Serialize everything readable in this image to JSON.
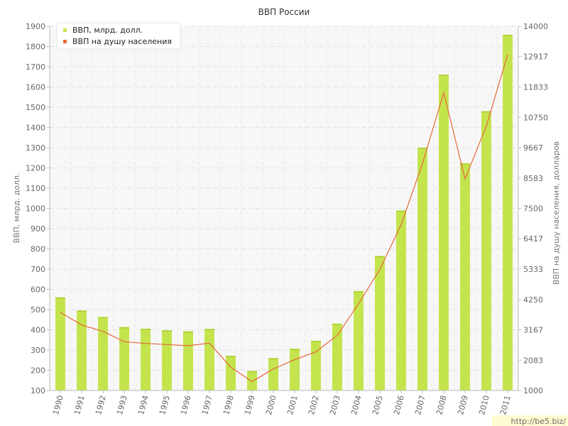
{
  "chart_data": {
    "type": "bar",
    "title": "ВВП России",
    "categories": [
      "1990",
      "1991",
      "1992",
      "1993",
      "1994",
      "1995",
      "1996",
      "1997",
      "1998",
      "1999",
      "2000",
      "2001",
      "2002",
      "2003",
      "2004",
      "2005",
      "2006",
      "2007",
      "2008",
      "2009",
      "2010",
      "2011"
    ],
    "series": [
      {
        "name": "ВВП, млрд. долл.",
        "type": "bar",
        "axis": "left",
        "color": "#c4e44e",
        "values": [
          560,
          495,
          463,
          413,
          405,
          397,
          392,
          404,
          271,
          196,
          260,
          306,
          345,
          430,
          591,
          764,
          989,
          1300,
          1661,
          1223,
          1480,
          1858
        ]
      },
      {
        "name": "ВВП на душу населения",
        "type": "line",
        "axis": "right",
        "color": "#e8673a",
        "values": [
          3790,
          3340,
          3110,
          2740,
          2680,
          2640,
          2600,
          2690,
          1830,
          1320,
          1770,
          2100,
          2380,
          2970,
          4100,
          5320,
          6920,
          9100,
          11630,
          8550,
          10440,
          12990
        ]
      }
    ],
    "xlabel": "",
    "ylabel": "ВВП, млрд. долл.",
    "ylabel_right": "ВВП на душу населения, долларов",
    "ylim": [
      100,
      1900
    ],
    "ylim_right": [
      1000,
      14000
    ],
    "yticks": [
      "100",
      "200",
      "300",
      "400",
      "500",
      "600",
      "700",
      "800",
      "900",
      "1000",
      "1100",
      "1200",
      "1300",
      "1400",
      "1500",
      "1600",
      "1700",
      "1800",
      "1900"
    ],
    "yticks_right": [
      "1000",
      "2083",
      "3167",
      "4250",
      "5333",
      "6417",
      "7500",
      "8583",
      "9667",
      "10750",
      "11833",
      "12917",
      "14000"
    ],
    "grid": true,
    "legend_position": "top-left"
  },
  "watermark": "http://be5.biz/"
}
